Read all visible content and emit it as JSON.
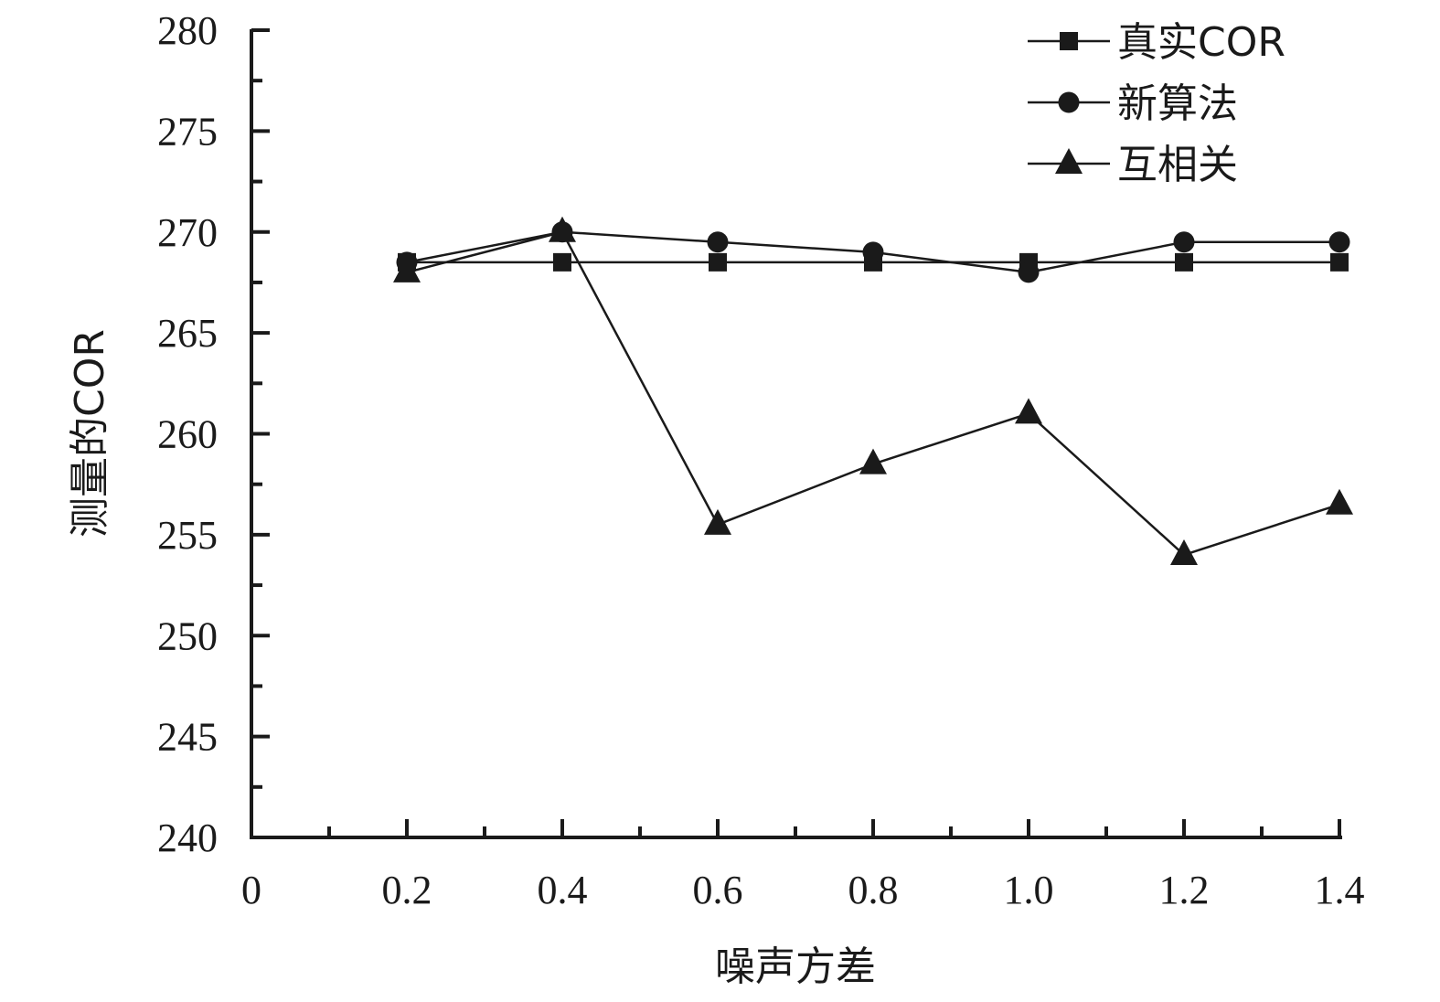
{
  "chart_data": {
    "type": "line",
    "xlabel": "噪声方差",
    "ylabel": "测量的COR",
    "xlim": [
      0,
      1.4
    ],
    "ylim": [
      240,
      280
    ],
    "x_ticks": [
      "0",
      "0.2",
      "0.4",
      "0.6",
      "0.8",
      "1.0",
      "1.2",
      "1.4"
    ],
    "y_ticks": [
      "240",
      "245",
      "250",
      "255",
      "260",
      "265",
      "270",
      "275",
      "280"
    ],
    "x": [
      0.2,
      0.4,
      0.6,
      0.8,
      1.0,
      1.2,
      1.4
    ],
    "legend_position": "top-right",
    "grid": false,
    "series": [
      {
        "name": "真实COR",
        "marker": "square",
        "values": [
          268.5,
          268.5,
          268.5,
          268.5,
          268.5,
          268.5,
          268.5
        ]
      },
      {
        "name": "新算法",
        "marker": "circle",
        "values": [
          268.5,
          270.0,
          269.5,
          269.0,
          268.0,
          269.5,
          269.5
        ]
      },
      {
        "name": "互相关",
        "marker": "triangle",
        "values": [
          268.0,
          270.0,
          255.5,
          258.5,
          261.0,
          254.0,
          256.5
        ]
      }
    ]
  }
}
